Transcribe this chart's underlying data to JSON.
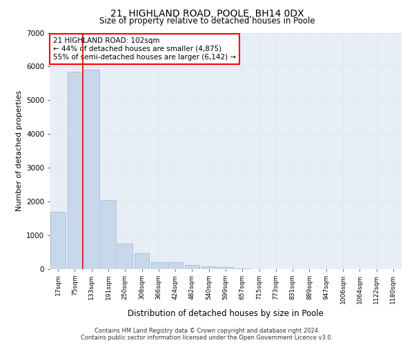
{
  "title": "21, HIGHLAND ROAD, POOLE, BH14 0DX",
  "subtitle": "Size of property relative to detached houses in Poole",
  "xlabel": "Distribution of detached houses by size in Poole",
  "ylabel": "Number of detached properties",
  "footer_line1": "Contains HM Land Registry data © Crown copyright and database right 2024.",
  "footer_line2": "Contains public sector information licensed under the Open Government Licence v3.0.",
  "annotation_line1": "21 HIGHLAND ROAD: 102sqm",
  "annotation_line2": "← 44% of detached houses are smaller (4,875)",
  "annotation_line3": "55% of semi-detached houses are larger (6,142) →",
  "bar_color": "#c8d8ec",
  "bar_edge_color": "#9ab4d0",
  "vline_color": "#cc0000",
  "categories": [
    "17sqm",
    "75sqm",
    "133sqm",
    "191sqm",
    "250sqm",
    "308sqm",
    "366sqm",
    "424sqm",
    "482sqm",
    "540sqm",
    "599sqm",
    "657sqm",
    "715sqm",
    "773sqm",
    "831sqm",
    "889sqm",
    "947sqm",
    "1006sqm",
    "1064sqm",
    "1122sqm",
    "1180sqm"
  ],
  "values": [
    1700,
    5850,
    5900,
    2050,
    750,
    480,
    200,
    195,
    120,
    75,
    55,
    25,
    5,
    0,
    0,
    0,
    0,
    0,
    0,
    0,
    0
  ],
  "ylim": [
    0,
    7000
  ],
  "yticks": [
    0,
    1000,
    2000,
    3000,
    4000,
    5000,
    6000,
    7000
  ],
  "grid_color": "#dde6f0",
  "background_color": "#e8eef6",
  "plot_background": "#ffffff",
  "vline_x": 1.5
}
